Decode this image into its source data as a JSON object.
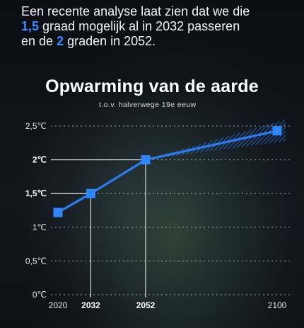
{
  "intro": {
    "line1": "Een recente analyse laat zien dat we die",
    "line2_highlight": "1,5",
    "line2_rest": " graad mogelijk al in 2032 passeren",
    "line3_start": "en de ",
    "line3_highlight": "2",
    "line3_rest": " graden in 2052."
  },
  "colors": {
    "accent": "#3b8cff",
    "line": "#2b7bf2",
    "marker": "#2f86ff",
    "text": "#ffffff"
  },
  "chart_data": {
    "type": "line",
    "title": "Opwarming van de aarde",
    "subtitle": "t.o.v. halverwege 19e eeuw",
    "xlabel": "",
    "ylabel": "",
    "x_ticks": [
      {
        "value": 2020,
        "label": "2020",
        "bold": false
      },
      {
        "value": 2032,
        "label": "2032",
        "bold": true
      },
      {
        "value": 2052,
        "label": "2052",
        "bold": true
      },
      {
        "value": 2100,
        "label": "2100",
        "bold": false
      }
    ],
    "y_ticks": [
      {
        "value": 0,
        "label": "0℃",
        "bold": false
      },
      {
        "value": 0.5,
        "label": "0,5℃",
        "bold": false
      },
      {
        "value": 1,
        "label": "1℃",
        "bold": false
      },
      {
        "value": 1.5,
        "label": "1,5℃",
        "bold": true
      },
      {
        "value": 2,
        "label": "2℃",
        "bold": true
      },
      {
        "value": 2.5,
        "label": "2,5℃",
        "bold": false
      }
    ],
    "ylim": [
      0,
      2.5
    ],
    "grid": true,
    "series": [
      {
        "points": [
          {
            "x": 2020,
            "y": 1.22
          },
          {
            "x": 2032,
            "y": 1.5
          },
          {
            "x": 2052,
            "y": 2.0
          },
          {
            "x": 2100,
            "y": 2.43
          }
        ]
      }
    ],
    "uncertainty_band": {
      "x": [
        2052,
        2100
      ],
      "y_low": [
        2.0,
        2.28
      ],
      "y_high": [
        2.0,
        2.6
      ]
    },
    "reference_lines": [
      {
        "x": 2032,
        "y": 1.5
      },
      {
        "x": 2052,
        "y": 2.0
      }
    ]
  }
}
